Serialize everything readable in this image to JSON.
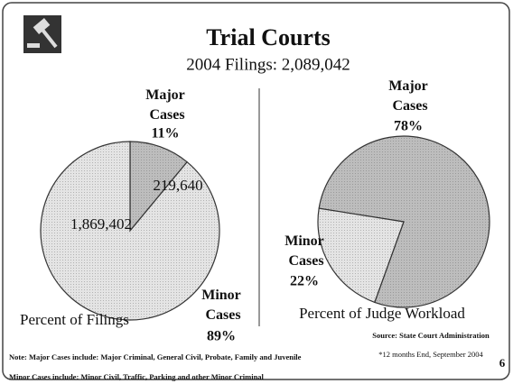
{
  "title": "Trial Courts",
  "subtitle": "2004 Filings: 2,089,042",
  "chart_data": [
    {
      "type": "pie",
      "title": "Percent of Filings",
      "categories": [
        "Major Cases",
        "Minor Cases"
      ],
      "values": [
        11,
        89
      ],
      "value_labels": [
        "11%",
        "89%"
      ],
      "counts": [
        "219,640",
        "1,869,402"
      ],
      "colors": [
        "#bdbdbd",
        "#e4e4e4"
      ]
    },
    {
      "type": "pie",
      "title": "Percent of Judge Workload",
      "categories": [
        "Major Cases",
        "Minor Cases"
      ],
      "values": [
        78,
        22
      ],
      "value_labels": [
        "78%",
        "22%"
      ],
      "colors": [
        "#bdbdbd",
        "#e4e4e4"
      ]
    }
  ],
  "notes": [
    "Note: Major Cases include: Major Criminal, General Civil, Probate, Family and Juvenile",
    "Minor Cases include: Minor Civil, Traffic, Parking and other Minor Criminal"
  ],
  "source": "Source: State Court Administration",
  "period": "*12 months End, September 2004",
  "page_number": "6"
}
